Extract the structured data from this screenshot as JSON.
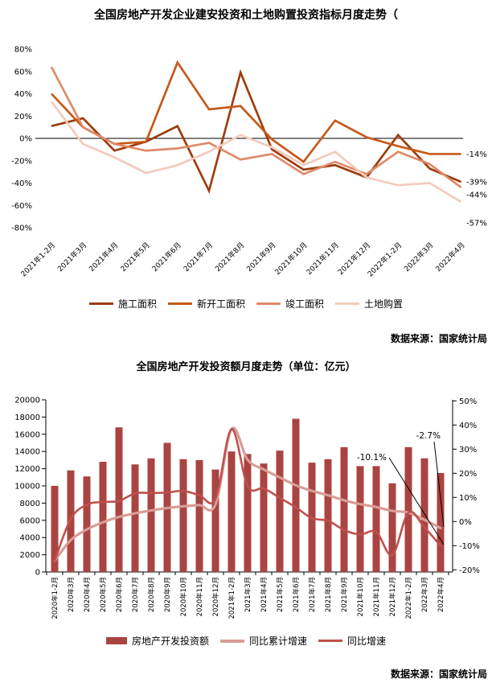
{
  "chart1": {
    "title": "全国房地产开发企业建安投资和土地购置投资指标月度走势（",
    "source": "数据来源：国家统计局"
  },
  "chart2": {
    "title": "全国房地产开发投资额月度走势（单位：亿元）",
    "source": "数据来源：国家统计局"
  },
  "chart_data": [
    {
      "type": "line",
      "title": "全国房地产开发企业建安投资和土地购置投资指标月度走势（",
      "categories": [
        "2021年1-2月",
        "2021年3月",
        "2021年4月",
        "2021年5月",
        "2021年6月",
        "2021年7月",
        "2021年8月",
        "2021年9月",
        "2021年10月",
        "2021年11月",
        "2021年12月",
        "2022年1-2月",
        "2022年3月",
        "2022年4月"
      ],
      "series": [
        {
          "name": "施工面积",
          "color": "#9C3D0E",
          "values": [
            11,
            18,
            -11,
            -3,
            11,
            -47,
            59,
            -10,
            -28,
            -24,
            -35,
            3,
            -27,
            -39
          ]
        },
        {
          "name": "新开工面积",
          "color": "#C5591A",
          "values": [
            40,
            10,
            -5,
            -3,
            68,
            26,
            29,
            -1,
            -21,
            16,
            1,
            -7,
            -14,
            -14
          ]
        },
        {
          "name": "竣工面积",
          "color": "#DE8A68",
          "values": [
            64,
            10,
            -5,
            -11,
            -9,
            -4,
            -19,
            -14,
            -32,
            -21,
            -32,
            -12,
            -23,
            -44
          ]
        },
        {
          "name": "土地购置",
          "color": "#F2CBBC",
          "values": [
            33,
            -5,
            -17,
            -31,
            -24,
            -12,
            3,
            -8,
            -24,
            -12,
            -35,
            -42,
            -40,
            -57
          ]
        }
      ],
      "ylim": [
        -80,
        80
      ],
      "y_tick_labels": [
        "80%",
        "60%",
        "40%",
        "20%",
        "0%",
        "-20%",
        "-40%",
        "-60%",
        "-80%"
      ],
      "end_labels": [
        "-14%",
        "-39%",
        "-44%",
        "-57%"
      ],
      "grid": false,
      "legend_position": "bottom",
      "source": "数据来源：国家统计局"
    },
    {
      "type": "bar+line",
      "title": "全国房地产开发投资额月度走势（单位：亿元）",
      "categories": [
        "2020年1-2月",
        "2020年3月",
        "2020年4月",
        "2020年5月",
        "2020年6月",
        "2020年7月",
        "2020年8月",
        "2020年9月",
        "2020年10月",
        "2020年11月",
        "2020年12月",
        "2021年1-2月",
        "2021年3月",
        "2021年4月",
        "2021年5月",
        "2021年6月",
        "2021年7月",
        "2021年8月",
        "2021年9月",
        "2021年10月",
        "2021年11月",
        "2021年12月",
        "2022年1-2月",
        "2022年3月",
        "2022年4月"
      ],
      "bar_series": {
        "name": "房地产开发投资额",
        "color": "#A94441",
        "values": [
          10000,
          11800,
          11100,
          12800,
          16800,
          12500,
          13200,
          15000,
          13100,
          13000,
          11900,
          14000,
          13700,
          12600,
          14100,
          17800,
          12700,
          13100,
          14500,
          12300,
          12300,
          10300,
          14500,
          13200,
          11500
        ]
      },
      "line_series": [
        {
          "name": "同比累计增速",
          "color": "#D99C97",
          "values": [
            -16.3,
            -7.7,
            -3.3,
            -0.3,
            1.9,
            3.4,
            4.6,
            5.6,
            6.3,
            6.8,
            7.0,
            38.3,
            25.6,
            21.6,
            18.3,
            15.0,
            12.7,
            10.9,
            8.8,
            7.2,
            6.0,
            4.4,
            3.7,
            0.7,
            -2.7
          ]
        },
        {
          "name": "同比增速",
          "color": "#C0504D",
          "values": [
            -16.3,
            1.1,
            7.0,
            8.1,
            8.5,
            11.7,
            11.8,
            12.0,
            12.7,
            10.9,
            9.3,
            38.3,
            14.7,
            13.7,
            9.8,
            5.9,
            1.4,
            0.3,
            -3.5,
            -5.4,
            -4.3,
            -13.9,
            3.7,
            -2.4,
            -10.1
          ]
        }
      ],
      "ylim_left": [
        0,
        20000
      ],
      "y_tick_labels_left": [
        "0",
        "2000",
        "4000",
        "6000",
        "8000",
        "10000",
        "12000",
        "14000",
        "16000",
        "18000",
        "20000"
      ],
      "ylim_right": [
        -20,
        50
      ],
      "y_tick_labels_right": [
        "-20%",
        "-10%",
        "0%",
        "10%",
        "20%",
        "30%",
        "40%",
        "50%"
      ],
      "annotations": [
        {
          "text": "-10.1%",
          "series": "同比增速"
        },
        {
          "text": "-2.7%",
          "series": "同比累计增速"
        }
      ],
      "grid": false,
      "legend_position": "bottom",
      "source": "数据来源：国家统计局"
    }
  ]
}
